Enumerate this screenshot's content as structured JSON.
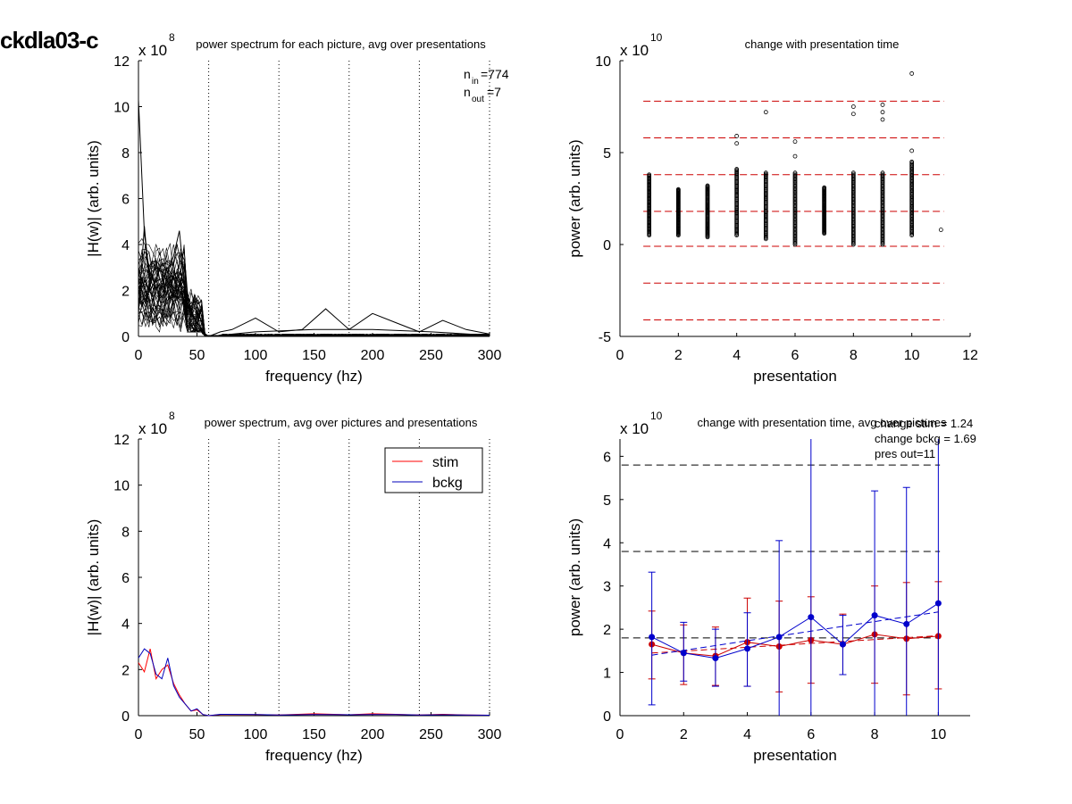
{
  "figure": {
    "label": "ckdla03-c"
  },
  "chart_data": [
    {
      "type": "line",
      "panel": "top-left",
      "title": "power spectrum for each picture, avg over presentations",
      "xlabel": "frequency (hz)",
      "ylabel": "|H(w)| (arb. units)",
      "exponent_label": "x 10",
      "exponent": "8",
      "xlim": [
        0,
        300
      ],
      "ylim": [
        0,
        12
      ],
      "xticks": [
        "0",
        "50",
        "100",
        "150",
        "200",
        "250",
        "300"
      ],
      "yticks": [
        "0",
        "2",
        "4",
        "6",
        "8",
        "10",
        "12"
      ],
      "vlines_dotted": [
        60,
        120,
        180,
        240,
        300
      ],
      "annotations": {
        "n_in_base": "n",
        "n_in_sub": "in",
        "n_in_value": "=774",
        "n_out_base": "n",
        "n_out_sub": "out",
        "n_out_value": "=7"
      },
      "series_count": 774,
      "representative_series": [
        {
          "x": [
            0,
            5,
            10,
            15,
            20,
            25,
            30,
            35,
            40,
            45,
            50,
            55,
            60,
            70,
            80,
            100,
            120,
            140,
            160,
            180,
            200,
            220,
            240,
            260,
            280,
            300
          ],
          "y": [
            10.3,
            4.5,
            2.5,
            3.0,
            2.8,
            3.0,
            2.5,
            2.0,
            1.5,
            1.0,
            0.6,
            0.2,
            0.0,
            0.2,
            0.3,
            0.8,
            0.2,
            0.3,
            1.2,
            0.3,
            1.0,
            0.6,
            0.2,
            0.7,
            0.3,
            0.1
          ]
        },
        {
          "x": [
            0,
            5,
            10,
            15,
            20,
            25,
            30,
            35,
            40,
            45,
            50,
            55,
            60,
            100,
            150,
            200,
            250,
            300
          ],
          "y": [
            1.0,
            4.8,
            2.0,
            2.5,
            3.2,
            2.8,
            3.5,
            4.6,
            2.0,
            1.2,
            0.5,
            0.1,
            0.0,
            0.2,
            0.3,
            0.3,
            0.2,
            0.05
          ]
        }
      ]
    },
    {
      "type": "scatter",
      "panel": "top-right",
      "title": "change with presentation time",
      "xlabel": "presentation",
      "ylabel": "power (arb. units)",
      "exponent_label": "x 10",
      "exponent": "10",
      "xlim": [
        0,
        12
      ],
      "ylim": [
        -5,
        10
      ],
      "xticks": [
        "0",
        "2",
        "4",
        "6",
        "8",
        "10",
        "12"
      ],
      "yticks": [
        "-5",
        "0",
        "5",
        "10"
      ],
      "hlines_dashed_red": [
        7.8,
        5.8,
        3.8,
        1.8,
        -0.1,
        -2.1,
        -4.1
      ],
      "outliers": [
        {
          "x": 4,
          "y": 5.9
        },
        {
          "x": 4,
          "y": 5.5
        },
        {
          "x": 5,
          "y": 7.2
        },
        {
          "x": 6,
          "y": 5.6
        },
        {
          "x": 6,
          "y": 4.8
        },
        {
          "x": 8,
          "y": 7.5
        },
        {
          "x": 8,
          "y": 7.1
        },
        {
          "x": 9,
          "y": 7.6
        },
        {
          "x": 9,
          "y": 7.2
        },
        {
          "x": 9,
          "y": 6.8
        },
        {
          "x": 10,
          "y": 9.3
        },
        {
          "x": 10,
          "y": 5.1
        },
        {
          "x": 11,
          "y": 0.8
        }
      ],
      "point_columns": [
        {
          "x": 1,
          "min": 0.5,
          "max": 3.8
        },
        {
          "x": 2,
          "min": 0.5,
          "max": 3.0
        },
        {
          "x": 3,
          "min": 0.4,
          "max": 3.2
        },
        {
          "x": 4,
          "min": 0.5,
          "max": 4.1
        },
        {
          "x": 5,
          "min": 0.3,
          "max": 3.9
        },
        {
          "x": 6,
          "min": 0.0,
          "max": 3.9
        },
        {
          "x": 7,
          "min": 0.6,
          "max": 3.1
        },
        {
          "x": 8,
          "min": 0.0,
          "max": 3.9
        },
        {
          "x": 9,
          "min": 0.0,
          "max": 3.9
        },
        {
          "x": 10,
          "min": 0.5,
          "max": 4.5
        }
      ]
    },
    {
      "type": "line",
      "panel": "bottom-left",
      "title": "power spectrum, avg over pictures and presentations",
      "xlabel": "frequency (hz)",
      "ylabel": "|H(w)| (arb. units)",
      "exponent_label": "x 10",
      "exponent": "8",
      "xlim": [
        0,
        300
      ],
      "ylim": [
        0,
        12
      ],
      "xticks": [
        "0",
        "50",
        "100",
        "150",
        "200",
        "250",
        "300"
      ],
      "yticks": [
        "0",
        "2",
        "4",
        "6",
        "8",
        "10",
        "12"
      ],
      "vlines_dotted": [
        60,
        120,
        180,
        240,
        300
      ],
      "legend": {
        "position": "top-right"
      },
      "series": [
        {
          "name": "stim",
          "color": "#ff0000",
          "x": [
            0,
            5,
            10,
            15,
            20,
            25,
            30,
            35,
            40,
            45,
            50,
            55,
            60,
            70,
            100,
            120,
            150,
            180,
            200,
            220,
            240,
            260,
            280,
            300
          ],
          "y": [
            2.3,
            1.9,
            2.9,
            1.6,
            2.0,
            2.2,
            1.4,
            0.9,
            0.5,
            0.2,
            0.25,
            0.05,
            0.0,
            0.05,
            0.05,
            0.03,
            0.08,
            0.04,
            0.08,
            0.06,
            0.03,
            0.06,
            0.03,
            0.02
          ]
        },
        {
          "name": "bckg",
          "color": "#0000bb",
          "x": [
            0,
            5,
            10,
            15,
            20,
            25,
            30,
            35,
            40,
            45,
            50,
            55,
            60,
            70,
            100,
            120,
            150,
            180,
            200,
            220,
            240,
            260,
            280,
            300
          ],
          "y": [
            2.5,
            2.9,
            2.7,
            1.8,
            1.6,
            2.5,
            1.3,
            0.8,
            0.5,
            0.2,
            0.3,
            0.05,
            0.0,
            0.06,
            0.05,
            0.03,
            0.05,
            0.04,
            0.05,
            0.05,
            0.03,
            0.04,
            0.03,
            0.02
          ]
        }
      ]
    },
    {
      "type": "line",
      "panel": "bottom-right",
      "title": "change with presentation time, avg over pictures",
      "xlabel": "presentation",
      "ylabel": "power (arb. units)",
      "exponent_label": "x 10",
      "exponent": "10",
      "xlim": [
        0,
        11
      ],
      "ylim": [
        0,
        6.4
      ],
      "xticks": [
        "0",
        "2",
        "4",
        "6",
        "8",
        "10"
      ],
      "yticks": [
        "0",
        "1",
        "2",
        "3",
        "4",
        "5",
        "6"
      ],
      "hlines_dashed_black": [
        1.8,
        3.8,
        5.8
      ],
      "annotations": [
        "change stim = 1.24",
        "change bckg = 1.69",
        "pres out=11"
      ],
      "x": [
        1,
        2,
        3,
        4,
        5,
        6,
        7,
        8,
        9,
        10
      ],
      "series": [
        {
          "name": "stim",
          "color": "#cc0000",
          "values": [
            1.65,
            1.45,
            1.38,
            1.7,
            1.6,
            1.75,
            1.65,
            1.88,
            1.78,
            1.84
          ],
          "err_low": [
            0.85,
            0.72,
            0.7,
            0.68,
            0.55,
            0.75,
            0.95,
            0.75,
            0.48,
            0.62
          ],
          "err_high": [
            2.42,
            2.1,
            2.05,
            2.72,
            2.65,
            2.75,
            2.35,
            3.0,
            3.08,
            3.1
          ],
          "trend": [
            1.45,
            1.85
          ]
        },
        {
          "name": "bckg",
          "color": "#0000cc",
          "values": [
            1.82,
            1.45,
            1.33,
            1.55,
            1.82,
            2.28,
            1.65,
            2.32,
            2.12,
            2.6
          ],
          "err_low": [
            0.25,
            0.8,
            0.68,
            0.68,
            0.0,
            0.0,
            0.95,
            0.0,
            0.0,
            0.0
          ],
          "err_high": [
            3.32,
            2.16,
            2.0,
            2.38,
            4.05,
            6.4,
            2.32,
            5.2,
            5.28,
            6.4
          ],
          "trend": [
            1.4,
            2.4
          ]
        }
      ]
    }
  ]
}
